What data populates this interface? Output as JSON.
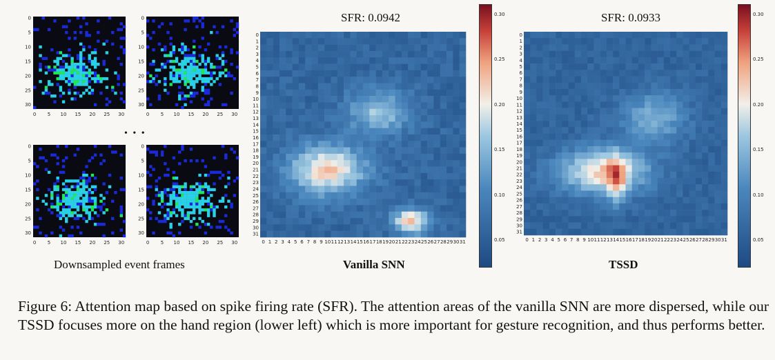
{
  "event_frames": {
    "label": "Downsampled event frames",
    "ellipsis": "• • •",
    "x_ticks": [
      "0",
      "5",
      "10",
      "15",
      "20",
      "25",
      "30"
    ],
    "y_ticks": [
      "0",
      "5",
      "10",
      "15",
      "20",
      "25",
      "30"
    ],
    "colors": {
      "background": "#0a0a12",
      "low": "#1a2ad8",
      "mid": "#2bd0e6",
      "high": "#22e65a"
    }
  },
  "heatmaps": [
    {
      "title": "SFR: 0.0942",
      "label": "Vanilla SNN"
    },
    {
      "title": "SFR: 0.0933",
      "label": "TSSD"
    }
  ],
  "heatmap_ticks": [
    "0",
    "1",
    "2",
    "3",
    "4",
    "5",
    "6",
    "7",
    "8",
    "9",
    "10",
    "11",
    "12",
    "13",
    "14",
    "15",
    "16",
    "17",
    "18",
    "19",
    "20",
    "21",
    "22",
    "23",
    "24",
    "25",
    "26",
    "27",
    "28",
    "29",
    "30",
    "31"
  ],
  "colorbar": {
    "ticks": [
      "0.30",
      "0.25",
      "0.20",
      "0.15",
      "0.10",
      "0.05"
    ],
    "colors": {
      "low": "#1e4a82",
      "mid": "#f5f2ee",
      "high": "#7a0f1f"
    }
  },
  "caption": "Figure 6: Attention map based on spike firing rate (SFR). The attention areas of the vanilla SNN are more dispersed, while our TSSD focuses more on the hand region (lower left) which is more important for gesture recognition, and thus performs better."
}
